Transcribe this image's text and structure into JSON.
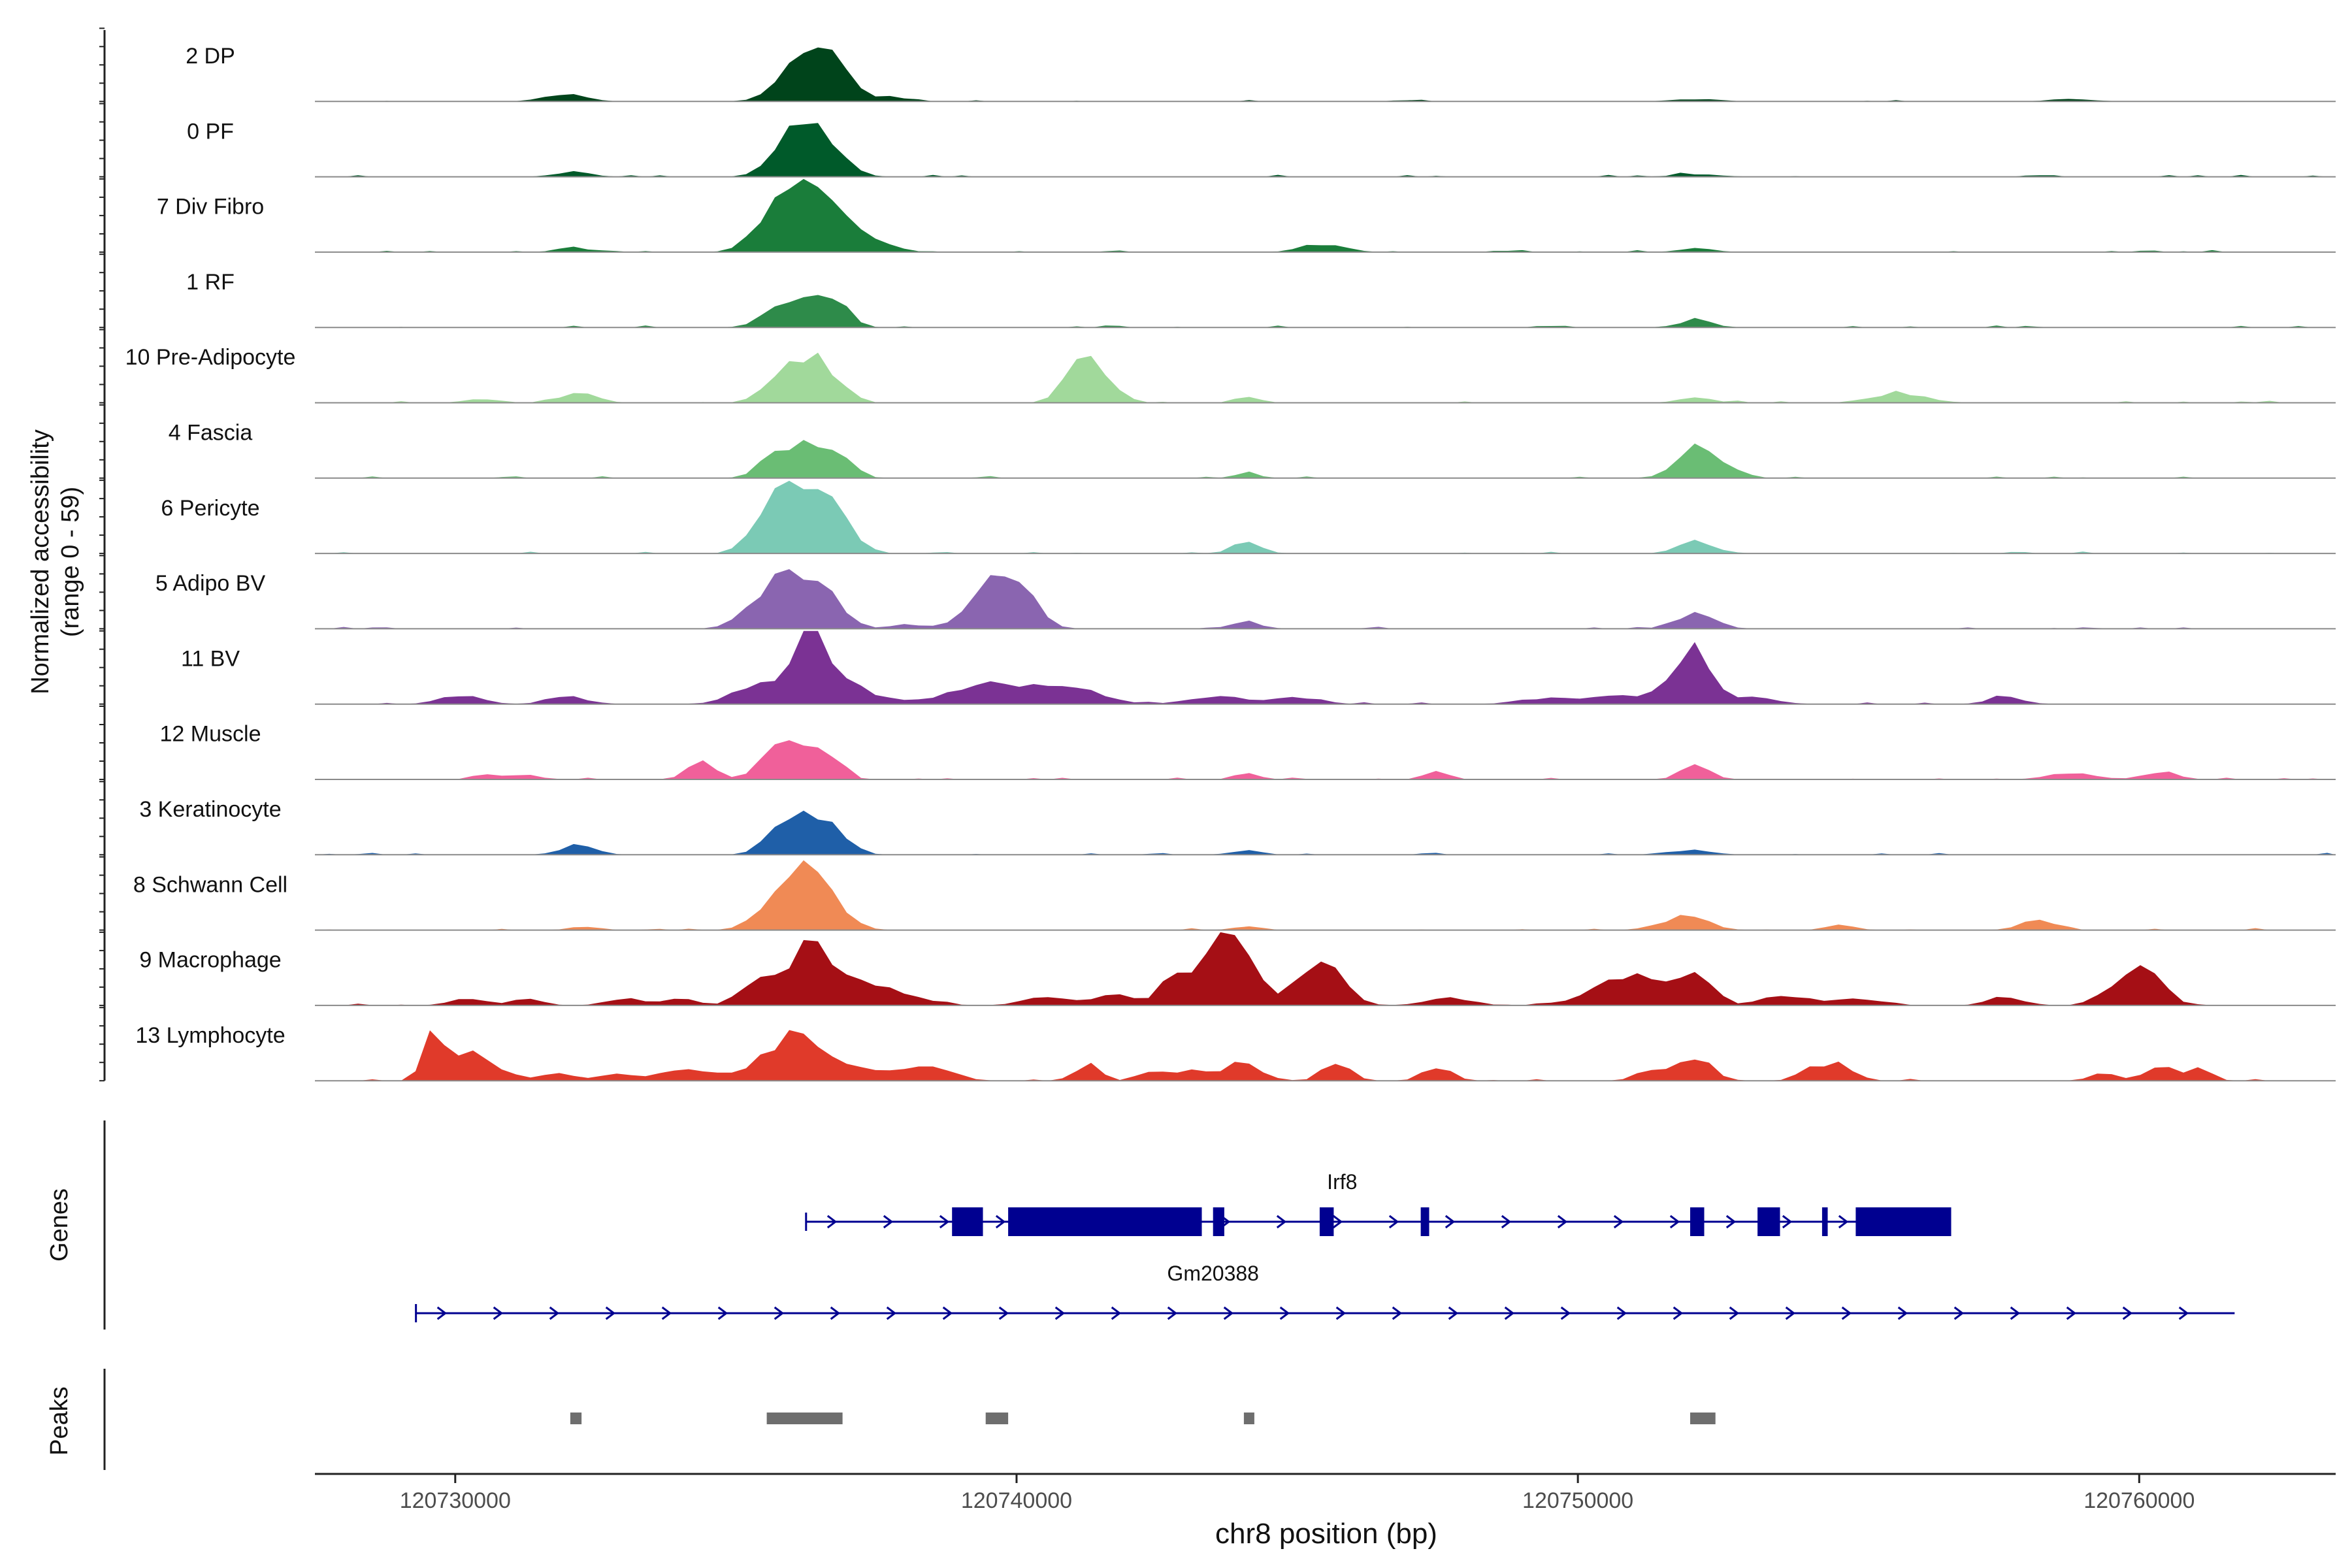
{
  "chart_data": {
    "type": "area",
    "title": "",
    "chromosome": "chr8",
    "xlabel": "chr8 position (bp)",
    "xlim": [
      120727500,
      120763500
    ],
    "xticks": [
      120730000,
      120740000,
      120750000,
      120760000
    ],
    "xtick_labels": [
      "120730000",
      "120740000",
      "120750000",
      "120760000"
    ],
    "ylabel_line1": "Normalized accessibility",
    "ylabel_line2": "(range 0 - 59)",
    "yrange": [
      0,
      59
    ],
    "genes_label": "Genes",
    "peaks_label": "Peaks",
    "tracks": [
      {
        "name": "2 DP",
        "color": "#00441b",
        "peaks": [
          [
            120736200,
            30,
            420
          ],
          [
            120736600,
            20,
            300
          ],
          [
            120736900,
            8,
            350
          ],
          [
            120732100,
            4,
            300
          ],
          [
            120731700,
            3,
            300
          ],
          [
            120737800,
            3,
            300
          ],
          [
            120758800,
            2,
            400
          ],
          [
            120752100,
            2,
            400
          ]
        ]
      },
      {
        "name": "0 PF",
        "color": "#005a2a",
        "peaks": [
          [
            120736300,
            34,
            380
          ],
          [
            120735800,
            16,
            300
          ],
          [
            120736800,
            13,
            280
          ],
          [
            120732100,
            4,
            300
          ],
          [
            120752100,
            2,
            400
          ]
        ]
      },
      {
        "name": "7 Div Fibro",
        "color": "#1a7d3a",
        "peaks": [
          [
            120736300,
            48,
            520
          ],
          [
            120735800,
            22,
            380
          ],
          [
            120737000,
            10,
            350
          ],
          [
            120737500,
            5,
            400
          ],
          [
            120732100,
            4,
            250
          ],
          [
            120745300,
            6,
            300
          ],
          [
            120745800,
            3,
            250
          ],
          [
            120752100,
            3,
            300
          ]
        ]
      },
      {
        "name": "1 RF",
        "color": "#2e8b4a",
        "peaks": [
          [
            120736300,
            26,
            350
          ],
          [
            120735700,
            12,
            300
          ],
          [
            120736800,
            12,
            260
          ],
          [
            120752100,
            6,
            300
          ]
        ]
      },
      {
        "name": "10 Pre-Adipocyte",
        "color": "#a1d99b",
        "peaks": [
          [
            120736300,
            36,
            300
          ],
          [
            120735700,
            18,
            280
          ],
          [
            120736800,
            14,
            260
          ],
          [
            120741300,
            30,
            350
          ],
          [
            120741000,
            8,
            250
          ],
          [
            120732200,
            8,
            300
          ],
          [
            120744100,
            5,
            200
          ],
          [
            120752100,
            4,
            300
          ],
          [
            120755500,
            5,
            400
          ],
          [
            120756000,
            4,
            400
          ],
          [
            120730500,
            3,
            300
          ]
        ]
      },
      {
        "name": "4 Fascia",
        "color": "#6abd74",
        "peaks": [
          [
            120736300,
            24,
            420
          ],
          [
            120735700,
            14,
            300
          ],
          [
            120736800,
            12,
            280
          ],
          [
            120752200,
            26,
            380
          ],
          [
            120744100,
            5,
            200
          ]
        ]
      },
      {
        "name": "6 Pericyte",
        "color": "#7bcab5",
        "peaks": [
          [
            120736300,
            50,
            420
          ],
          [
            120735700,
            34,
            350
          ],
          [
            120736900,
            15,
            300
          ],
          [
            120752100,
            10,
            300
          ],
          [
            120744100,
            10,
            250
          ]
        ]
      },
      {
        "name": "5 Adipo BV",
        "color": "#8a65b0",
        "peaks": [
          [
            120736100,
            34,
            500
          ],
          [
            120735600,
            18,
            400
          ],
          [
            120736700,
            12,
            300
          ],
          [
            120739700,
            38,
            400
          ],
          [
            120740100,
            15,
            300
          ],
          [
            120739200,
            8,
            300
          ],
          [
            120752100,
            12,
            350
          ],
          [
            120744100,
            6,
            250
          ],
          [
            120738200,
            3,
            300
          ]
        ]
      },
      {
        "name": "11 BV",
        "color": "#7b3294",
        "peaks": [
          [
            120736300,
            59,
            220
          ],
          [
            120735600,
            20,
            500
          ],
          [
            120736800,
            22,
            300
          ],
          [
            120737300,
            8,
            400
          ],
          [
            120739700,
            15,
            500
          ],
          [
            120741300,
            8,
            400
          ],
          [
            120752100,
            34,
            300
          ],
          [
            120751800,
            15,
            400
          ],
          [
            120730100,
            7,
            350
          ],
          [
            120732000,
            6,
            350
          ],
          [
            120738900,
            6,
            500
          ],
          [
            120740600,
            8,
            500
          ],
          [
            120743600,
            6,
            500
          ],
          [
            120749500,
            5,
            500
          ],
          [
            120750700,
            6,
            400
          ],
          [
            120753100,
            5,
            400
          ],
          [
            120757600,
            6,
            300
          ],
          [
            120745000,
            5,
            400
          ]
        ]
      },
      {
        "name": "12 Muscle",
        "color": "#f0609a",
        "peaks": [
          [
            120736300,
            30,
            250
          ],
          [
            120735700,
            28,
            250
          ],
          [
            120736800,
            12,
            200
          ],
          [
            120734400,
            14,
            250
          ],
          [
            120747500,
            8,
            200
          ],
          [
            120752100,
            12,
            250
          ],
          [
            120744100,
            6,
            200
          ],
          [
            120758800,
            5,
            400
          ],
          [
            120760400,
            6,
            300
          ],
          [
            120731200,
            4,
            300
          ],
          [
            120730500,
            4,
            200
          ]
        ]
      },
      {
        "name": "3 Keratinocyte",
        "color": "#1f5fa8",
        "peaks": [
          [
            120736300,
            30,
            380
          ],
          [
            120735800,
            14,
            300
          ],
          [
            120736800,
            10,
            280
          ],
          [
            120732200,
            8,
            300
          ],
          [
            120744100,
            4,
            250
          ],
          [
            120752100,
            4,
            300
          ]
        ]
      },
      {
        "name": "8 Schwann Cell",
        "color": "#f08a55",
        "peaks": [
          [
            120736300,
            40,
            320
          ],
          [
            120735700,
            22,
            350
          ],
          [
            120736800,
            14,
            300
          ],
          [
            120752100,
            10,
            300
          ],
          [
            120751600,
            6,
            300
          ],
          [
            120758200,
            8,
            300
          ],
          [
            120732300,
            3,
            250
          ],
          [
            120754700,
            4,
            250
          ],
          [
            120744100,
            3,
            250
          ]
        ]
      },
      {
        "name": "9 Macrophage",
        "color": "#a50f15",
        "peaks": [
          [
            120736300,
            48,
            300
          ],
          [
            120735400,
            24,
            300
          ],
          [
            120736900,
            18,
            350
          ],
          [
            120737800,
            12,
            500
          ],
          [
            120743600,
            42,
            350
          ],
          [
            120744000,
            38,
            300
          ],
          [
            120742800,
            20,
            250
          ],
          [
            120745500,
            25,
            350
          ],
          [
            120745200,
            14,
            400
          ],
          [
            120750700,
            20,
            500
          ],
          [
            120751300,
            12,
            400
          ],
          [
            120752100,
            22,
            300
          ],
          [
            120760100,
            24,
            350
          ],
          [
            120759600,
            12,
            300
          ],
          [
            120730200,
            6,
            300
          ],
          [
            120731300,
            6,
            250
          ],
          [
            120733000,
            6,
            300
          ],
          [
            120734000,
            6,
            300
          ],
          [
            120740500,
            6,
            400
          ],
          [
            120741800,
            8,
            400
          ],
          [
            120747700,
            6,
            400
          ],
          [
            120753700,
            8,
            400
          ],
          [
            120755000,
            6,
            400
          ],
          [
            120757600,
            6,
            300
          ]
        ]
      },
      {
        "name": "13 Lymphocyte",
        "color": "#e03a2a",
        "peaks": [
          [
            120729600,
            46,
            160
          ],
          [
            120730200,
            20,
            250
          ],
          [
            120730700,
            10,
            250
          ],
          [
            120736200,
            36,
            250
          ],
          [
            120735800,
            20,
            300
          ],
          [
            120735300,
            10,
            250
          ],
          [
            120736800,
            14,
            250
          ],
          [
            120734100,
            9,
            500
          ],
          [
            120737500,
            8,
            500
          ],
          [
            120738500,
            10,
            400
          ],
          [
            120741300,
            16,
            200
          ],
          [
            120744000,
            14,
            300
          ],
          [
            120745700,
            14,
            250
          ],
          [
            120747500,
            12,
            250
          ],
          [
            120752100,
            18,
            300
          ],
          [
            120751300,
            10,
            250
          ],
          [
            120754200,
            10,
            250
          ],
          [
            120754700,
            12,
            250
          ],
          [
            120731800,
            6,
            300
          ],
          [
            120732800,
            6,
            250
          ],
          [
            120742500,
            8,
            250
          ],
          [
            120743200,
            8,
            250
          ],
          [
            120760400,
            12,
            250
          ],
          [
            120759400,
            6,
            250
          ],
          [
            120761100,
            10,
            200
          ]
        ]
      }
    ],
    "genes": [
      {
        "name": "Irf8",
        "start": 120736250,
        "end": 120756650,
        "exons": [
          [
            120738850,
            120739400
          ],
          [
            120739850,
            120743300
          ],
          [
            120743500,
            120743700
          ],
          [
            120745400,
            120745650
          ],
          [
            120747200,
            120747350
          ],
          [
            120752000,
            120752250
          ],
          [
            120753200,
            120753600
          ],
          [
            120754350,
            120754450
          ],
          [
            120754950,
            120756650
          ]
        ]
      },
      {
        "name": "Gm20388",
        "start": 120729300,
        "end": 120761700,
        "exons": []
      }
    ],
    "peaks_regions": [
      [
        120732050,
        120732250
      ],
      [
        120735550,
        120736900
      ],
      [
        120739450,
        120739850
      ],
      [
        120744050,
        120744200
      ],
      [
        120752000,
        120752450
      ]
    ]
  }
}
